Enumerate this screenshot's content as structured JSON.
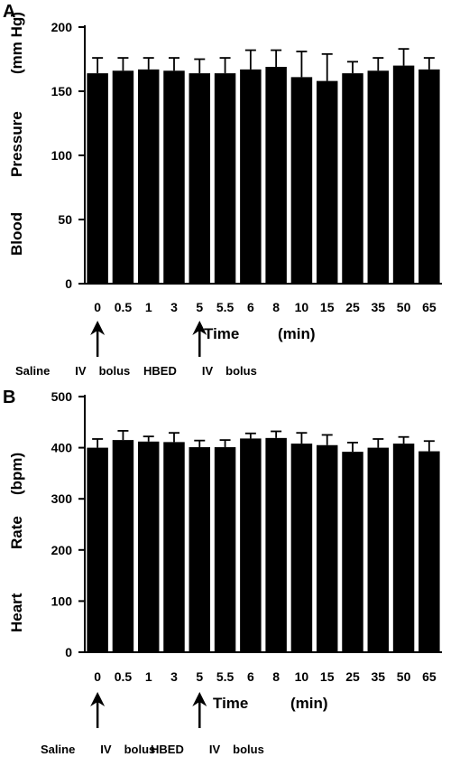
{
  "chart_data": [
    {
      "type": "bar",
      "panel": "A",
      "ylabel_words": [
        "Blood",
        "Pressure",
        "(mm Hg)"
      ],
      "xlabel_words": [
        "Time",
        "(min)"
      ],
      "categories": [
        "0",
        "0.5",
        "1",
        "3",
        "5",
        "5.5",
        "6",
        "8",
        "10",
        "15",
        "25",
        "35",
        "50",
        "65"
      ],
      "values": [
        164,
        166,
        167,
        166,
        164,
        164,
        167,
        169,
        161,
        158,
        164,
        166,
        170,
        167
      ],
      "errors": [
        12,
        10,
        9,
        10,
        11,
        12,
        15,
        13,
        20,
        21,
        9,
        10,
        13,
        9
      ],
      "ylim": [
        0,
        200
      ],
      "yticks": [
        "0",
        "50",
        "100",
        "150",
        "200"
      ],
      "annotations": [
        {
          "at": "0",
          "words": [
            "Saline",
            "IV",
            "bolus"
          ]
        },
        {
          "at": "5",
          "words": [
            "HBED",
            "IV",
            "bolus"
          ]
        }
      ]
    },
    {
      "type": "bar",
      "panel": "B",
      "ylabel_words": [
        "Heart",
        "Rate",
        "(bpm)"
      ],
      "xlabel_words": [
        "Time",
        "(min)"
      ],
      "categories": [
        "0",
        "0.5",
        "1",
        "3",
        "5",
        "5.5",
        "6",
        "8",
        "10",
        "15",
        "25",
        "35",
        "50",
        "65"
      ],
      "values": [
        400,
        415,
        412,
        411,
        401,
        401,
        418,
        419,
        408,
        405,
        392,
        400,
        408,
        393
      ],
      "errors": [
        17,
        18,
        10,
        18,
        13,
        14,
        10,
        13,
        21,
        20,
        18,
        17,
        13,
        20
      ],
      "ylim": [
        0,
        500
      ],
      "yticks": [
        "0",
        "100",
        "200",
        "300",
        "400",
        "500"
      ],
      "annotations": [
        {
          "at": "0",
          "words": [
            "Saline",
            "IV",
            "bolus"
          ]
        },
        {
          "at": "5",
          "words": [
            "HBED",
            "IV",
            "bolus"
          ]
        }
      ]
    }
  ]
}
